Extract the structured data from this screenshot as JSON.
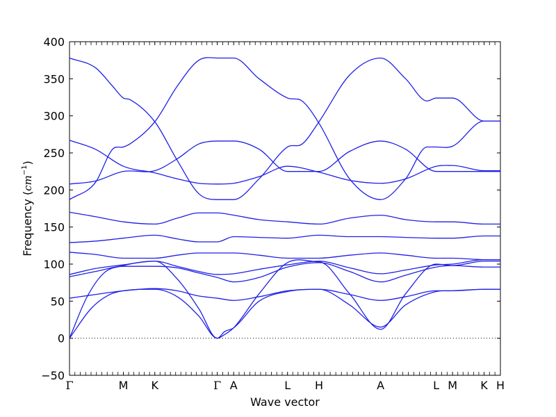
{
  "chart_data": {
    "type": "line",
    "title": "",
    "xlabel": "Wave vector",
    "ylabel_prefix": "Frequency (",
    "ylabel_unit_base": "cm",
    "ylabel_unit_exp": "−1",
    "ylabel_suffix": ")",
    "ylim": [
      -50,
      400
    ],
    "y_ticks": [
      -50,
      0,
      50,
      100,
      150,
      200,
      250,
      300,
      350,
      400
    ],
    "y_tick_labels": [
      "−50",
      "0",
      "50",
      "100",
      "150",
      "200",
      "250",
      "300",
      "350",
      "400"
    ],
    "x_range": [
      0,
      1
    ],
    "zero_line": true,
    "high_symmetry_points": [
      {
        "label": "Γ",
        "x": 0.0
      },
      {
        "label": "M",
        "x": 0.125
      },
      {
        "label": "K",
        "x": 0.198
      },
      {
        "label": "Γ",
        "x": 0.343
      },
      {
        "label": "A",
        "x": 0.381
      },
      {
        "label": "L",
        "x": 0.506
      },
      {
        "label": "H",
        "x": 0.579
      },
      {
        "label": "A",
        "x": 0.722
      },
      {
        "label": "L",
        "x": 0.851
      },
      {
        "label": "M",
        "x": 0.889
      },
      {
        "label": "K",
        "x": 0.962
      },
      {
        "label": "H",
        "x": 1.0
      }
    ],
    "series": [
      {
        "color": "#1f1fe6",
        "points": [
          [
            0,
            378
          ],
          [
            0.06,
            365
          ],
          [
            0.1,
            340
          ],
          [
            0.125,
            324
          ],
          [
            0.14,
            322
          ],
          [
            0.198,
            292
          ],
          [
            0.25,
            240
          ],
          [
            0.3,
            195
          ],
          [
            0.343,
            187
          ],
          [
            0.381,
            187
          ],
          [
            0.44,
            215
          ],
          [
            0.506,
            258
          ],
          [
            0.54,
            262
          ],
          [
            0.579,
            292
          ],
          [
            0.65,
            355
          ],
          [
            0.722,
            378
          ],
          [
            0.78,
            350
          ],
          [
            0.83,
            320
          ],
          [
            0.851,
            324
          ],
          [
            0.889,
            324
          ],
          [
            0.962,
            293
          ],
          [
            1.0,
            293
          ]
        ]
      },
      {
        "color": "#1f1fe6",
        "points": [
          [
            0,
            187
          ],
          [
            0.06,
            210
          ],
          [
            0.1,
            255
          ],
          [
            0.125,
            258
          ],
          [
            0.14,
            262
          ],
          [
            0.198,
            292
          ],
          [
            0.25,
            340
          ],
          [
            0.3,
            375
          ],
          [
            0.343,
            378
          ],
          [
            0.381,
            378
          ],
          [
            0.44,
            350
          ],
          [
            0.506,
            324
          ],
          [
            0.54,
            320
          ],
          [
            0.579,
            290
          ],
          [
            0.65,
            215
          ],
          [
            0.722,
            187
          ],
          [
            0.78,
            215
          ],
          [
            0.83,
            258
          ],
          [
            0.851,
            258
          ],
          [
            0.889,
            259
          ],
          [
            0.962,
            293
          ],
          [
            1.0,
            293
          ]
        ]
      },
      {
        "color": "#1f1fe6",
        "points": [
          [
            0,
            267
          ],
          [
            0.06,
            255
          ],
          [
            0.125,
            232
          ],
          [
            0.198,
            223
          ],
          [
            0.25,
            215
          ],
          [
            0.3,
            209
          ],
          [
            0.343,
            208
          ],
          [
            0.381,
            209
          ],
          [
            0.44,
            218
          ],
          [
            0.506,
            232
          ],
          [
            0.579,
            224
          ],
          [
            0.65,
            213
          ],
          [
            0.722,
            209
          ],
          [
            0.78,
            215
          ],
          [
            0.851,
            232
          ],
          [
            0.889,
            233
          ],
          [
            0.962,
            226
          ],
          [
            1.0,
            226
          ]
        ]
      },
      {
        "color": "#1f1fe6",
        "points": [
          [
            0,
            208
          ],
          [
            0.06,
            212
          ],
          [
            0.125,
            225
          ],
          [
            0.198,
            226
          ],
          [
            0.25,
            242
          ],
          [
            0.3,
            262
          ],
          [
            0.343,
            266
          ],
          [
            0.381,
            266
          ],
          [
            0.44,
            255
          ],
          [
            0.506,
            225
          ],
          [
            0.579,
            225
          ],
          [
            0.65,
            252
          ],
          [
            0.722,
            266
          ],
          [
            0.78,
            255
          ],
          [
            0.851,
            225
          ],
          [
            0.889,
            225
          ],
          [
            0.962,
            225
          ],
          [
            1.0,
            225
          ]
        ]
      },
      {
        "color": "#1f1fe6",
        "points": [
          [
            0,
            170
          ],
          [
            0.06,
            164
          ],
          [
            0.125,
            157
          ],
          [
            0.198,
            154
          ],
          [
            0.25,
            162
          ],
          [
            0.3,
            169
          ],
          [
            0.343,
            169
          ],
          [
            0.381,
            166
          ],
          [
            0.44,
            160
          ],
          [
            0.506,
            157
          ],
          [
            0.579,
            154
          ],
          [
            0.65,
            162
          ],
          [
            0.722,
            166
          ],
          [
            0.78,
            160
          ],
          [
            0.851,
            157
          ],
          [
            0.889,
            157
          ],
          [
            0.962,
            154
          ],
          [
            1.0,
            154
          ]
        ]
      },
      {
        "color": "#1f1fe6",
        "points": [
          [
            0,
            129
          ],
          [
            0.06,
            131
          ],
          [
            0.125,
            135
          ],
          [
            0.198,
            139
          ],
          [
            0.25,
            134
          ],
          [
            0.3,
            130
          ],
          [
            0.343,
            130
          ],
          [
            0.381,
            137
          ],
          [
            0.44,
            136
          ],
          [
            0.506,
            135
          ],
          [
            0.579,
            139
          ],
          [
            0.65,
            137
          ],
          [
            0.722,
            137
          ],
          [
            0.78,
            136
          ],
          [
            0.851,
            135
          ],
          [
            0.889,
            135
          ],
          [
            0.962,
            138
          ],
          [
            1.0,
            138
          ]
        ]
      },
      {
        "color": "#1f1fe6",
        "points": [
          [
            0,
            116
          ],
          [
            0.06,
            113
          ],
          [
            0.125,
            108
          ],
          [
            0.198,
            108
          ],
          [
            0.25,
            112
          ],
          [
            0.3,
            115
          ],
          [
            0.343,
            115
          ],
          [
            0.381,
            115
          ],
          [
            0.44,
            112
          ],
          [
            0.506,
            108
          ],
          [
            0.579,
            108
          ],
          [
            0.65,
            112
          ],
          [
            0.722,
            115
          ],
          [
            0.78,
            112
          ],
          [
            0.851,
            108
          ],
          [
            0.889,
            108
          ],
          [
            0.962,
            106
          ],
          [
            1.0,
            106
          ]
        ]
      },
      {
        "color": "#1f1fe6",
        "points": [
          [
            0,
            86
          ],
          [
            0.06,
            94
          ],
          [
            0.125,
            99
          ],
          [
            0.198,
            104
          ],
          [
            0.25,
            97
          ],
          [
            0.3,
            90
          ],
          [
            0.343,
            86
          ],
          [
            0.381,
            87
          ],
          [
            0.44,
            93
          ],
          [
            0.506,
            99
          ],
          [
            0.579,
            104
          ],
          [
            0.65,
            95
          ],
          [
            0.722,
            87
          ],
          [
            0.78,
            92
          ],
          [
            0.851,
            99
          ],
          [
            0.889,
            100
          ],
          [
            0.962,
            106
          ],
          [
            1.0,
            106
          ]
        ]
      },
      {
        "color": "#1f1fe6",
        "points": [
          [
            0,
            83
          ],
          [
            0.06,
            90
          ],
          [
            0.125,
            97
          ],
          [
            0.198,
            97
          ],
          [
            0.25,
            95
          ],
          [
            0.3,
            88
          ],
          [
            0.343,
            82
          ],
          [
            0.381,
            76
          ],
          [
            0.44,
            82
          ],
          [
            0.506,
            96
          ],
          [
            0.579,
            102
          ],
          [
            0.65,
            90
          ],
          [
            0.722,
            76
          ],
          [
            0.78,
            85
          ],
          [
            0.851,
            96
          ],
          [
            0.889,
            98
          ],
          [
            0.962,
            96
          ],
          [
            1.0,
            96
          ]
        ]
      },
      {
        "color": "#1f1fe6",
        "points": [
          [
            0,
            54
          ],
          [
            0.06,
            59
          ],
          [
            0.125,
            64
          ],
          [
            0.198,
            67
          ],
          [
            0.25,
            64
          ],
          [
            0.3,
            57
          ],
          [
            0.343,
            54
          ],
          [
            0.381,
            51
          ],
          [
            0.44,
            56
          ],
          [
            0.506,
            64
          ],
          [
            0.579,
            66
          ],
          [
            0.65,
            59
          ],
          [
            0.722,
            51
          ],
          [
            0.78,
            56
          ],
          [
            0.851,
            64
          ],
          [
            0.889,
            64
          ],
          [
            0.962,
            66
          ],
          [
            1.0,
            66
          ]
        ]
      },
      {
        "color": "#1f1fe6",
        "points": [
          [
            0,
            0
          ],
          [
            0.04,
            55
          ],
          [
            0.08,
            88
          ],
          [
            0.125,
            98
          ],
          [
            0.198,
            104
          ],
          [
            0.25,
            80
          ],
          [
            0.3,
            40
          ],
          [
            0.343,
            0
          ],
          [
            0.36,
            5
          ],
          [
            0.381,
            14
          ],
          [
            0.44,
            60
          ],
          [
            0.506,
            102
          ],
          [
            0.579,
            103
          ],
          [
            0.65,
            60
          ],
          [
            0.722,
            12
          ],
          [
            0.78,
            60
          ],
          [
            0.851,
            100
          ],
          [
            0.889,
            98
          ],
          [
            0.962,
            104
          ],
          [
            1.0,
            104
          ]
        ]
      },
      {
        "color": "#1f1fe6",
        "points": [
          [
            0,
            0
          ],
          [
            0.05,
            40
          ],
          [
            0.09,
            58
          ],
          [
            0.125,
            64
          ],
          [
            0.198,
            66
          ],
          [
            0.25,
            56
          ],
          [
            0.3,
            30
          ],
          [
            0.343,
            0
          ],
          [
            0.36,
            9
          ],
          [
            0.381,
            14
          ],
          [
            0.44,
            50
          ],
          [
            0.506,
            63
          ],
          [
            0.579,
            66
          ],
          [
            0.65,
            45
          ],
          [
            0.722,
            15
          ],
          [
            0.78,
            45
          ],
          [
            0.851,
            63
          ],
          [
            0.889,
            64
          ],
          [
            0.962,
            66
          ],
          [
            1.0,
            66
          ]
        ]
      }
    ]
  }
}
